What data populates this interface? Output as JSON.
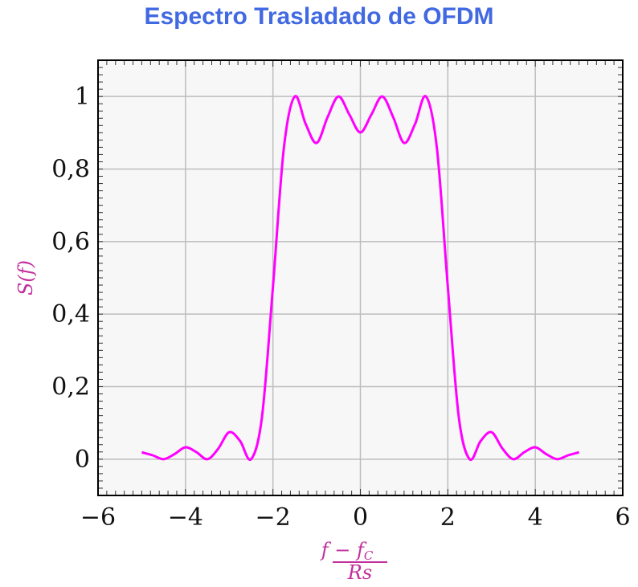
{
  "chart_data": {
    "type": "line",
    "title": "Espectro Trasladado de OFDM",
    "xlabel_numerator": "f − f",
    "xlabel_numerator_sub": "C",
    "xlabel_denominator": "Rs",
    "ylabel": "S(f)",
    "xlim": [
      -6,
      6
    ],
    "ylim": [
      -0.1,
      1.1
    ],
    "xticks": [
      -6,
      -4,
      -2,
      0,
      2,
      4,
      6
    ],
    "xtick_labels": [
      "−6",
      "−4",
      "−2",
      "0",
      "2",
      "4",
      "6"
    ],
    "yticks": [
      0,
      0.2,
      0.4,
      0.6,
      0.8,
      1
    ],
    "ytick_labels": [
      "0",
      "0,2",
      "0,4",
      "0,6",
      "0,8",
      "1"
    ],
    "grid": true,
    "colors": {
      "title": "#4169e1",
      "line": "#ff00ff",
      "labels": "#c2309c",
      "background": "#f7f7f7"
    },
    "series": [
      {
        "x": [
          -5,
          -4.75,
          -4.5,
          -4.25,
          -4,
          -3.75,
          -3.5,
          -3.25,
          -3,
          -2.75,
          -2.5,
          -2.25,
          -2,
          -1.75,
          -1.5,
          -1.25,
          -1,
          -0.75,
          -0.5,
          -0.25,
          0,
          0.25,
          0.5,
          0.75,
          1,
          1.25,
          1.5,
          1.75,
          2,
          2.25,
          2.5,
          2.75,
          3,
          3.25,
          3.5,
          3.75,
          4,
          4.25,
          4.5,
          4.75,
          5
        ],
        "y": [
          0.019,
          0.0107,
          0,
          0.0141,
          0.0328,
          0.0195,
          0,
          0.0291,
          0.0745,
          0.05,
          0,
          0.1169,
          0.4748,
          0.8578,
          1,
          0.9239,
          0.8718,
          0.9431,
          1,
          0.9497,
          0.9007,
          0.9497,
          1,
          0.9431,
          0.8718,
          0.9239,
          1,
          0.8578,
          0.4748,
          0.1169,
          0,
          0.05,
          0.0745,
          0.0291,
          0,
          0.0195,
          0.0328,
          0.0141,
          0,
          0.0107,
          0.019
        ]
      }
    ]
  }
}
